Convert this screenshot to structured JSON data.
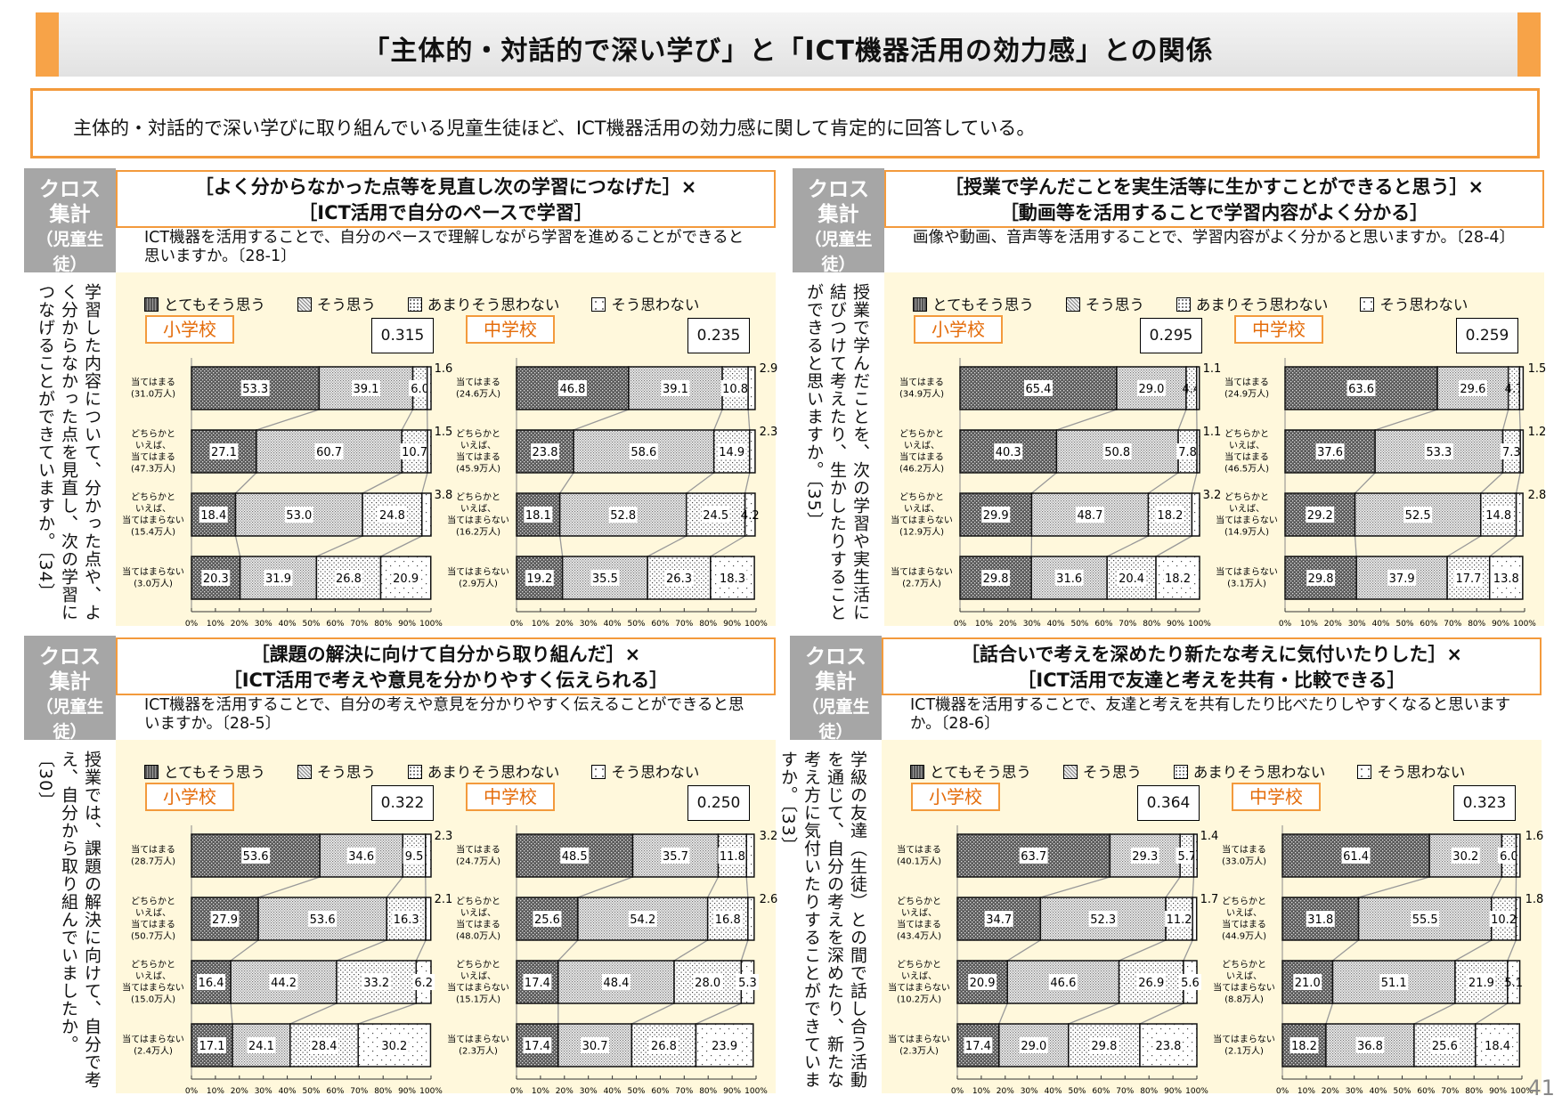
{
  "title": "「主体的・対話的で深い学び」と「ICT機器活用の効力感」との関係",
  "summary": "主体的・対話的で深い学びに取り組んでいる児童生徒ほど、ICT機器活用の効力感に関して肯定的に回答している。",
  "cross_label": [
    "クロス",
    "集計",
    "（児童生徒）"
  ],
  "page_number": "41",
  "legend": [
    "とてもそう思う",
    "そう思う",
    "あまりそう思わない",
    "そう思わない"
  ],
  "colors": {
    "accent": "#f39a3c",
    "school_text": "#e46c0a",
    "chart_bg": "#fff8dc"
  },
  "chart_data": [
    {
      "type": "bar",
      "orientation": "horizontal-stacked-100",
      "title": [
        "［よく分からなかった点等を見直し次の学習につなげた］×",
        "［ICT活用で自分のペースで学習］"
      ],
      "question": "ICT機器を活用することで、自分のペースで理解しながら学習を進めることができると思いますか。〔28-1〕",
      "side_text": "学習した内容について、分かった点や、よく分からなかった点を見直し、次の学習につなげることができていますか。〔34〕",
      "xticks": [
        "0%",
        "10%",
        "20%",
        "30%",
        "40%",
        "50%",
        "60%",
        "70%",
        "80%",
        "90%",
        "100%"
      ],
      "charts": [
        {
          "school": "小学校",
          "coef": "0.315",
          "rows": [
            {
              "label": [
                "当てはまる"
              ],
              "count": "(31.0万人)",
              "values": [
                53.3,
                39.1,
                6.0,
                1.6
              ]
            },
            {
              "label": [
                "どちらかと",
                "いえば、",
                "当てはまる"
              ],
              "count": "(47.3万人)",
              "values": [
                27.1,
                60.7,
                10.7,
                1.5
              ]
            },
            {
              "label": [
                "どちらかと",
                "いえば、",
                "当てはまらない"
              ],
              "count": "(15.4万人)",
              "values": [
                18.4,
                53.0,
                24.8,
                3.8
              ]
            },
            {
              "label": [
                "当てはまらない"
              ],
              "count": "(3.0万人)",
              "values": [
                20.3,
                31.9,
                26.8,
                20.9
              ]
            }
          ]
        },
        {
          "school": "中学校",
          "coef": "0.235",
          "rows": [
            {
              "label": [
                "当てはまる"
              ],
              "count": "(24.6万人)",
              "values": [
                46.8,
                39.1,
                10.8,
                2.9
              ]
            },
            {
              "label": [
                "どちらかと",
                "いえば、",
                "当てはまる"
              ],
              "count": "(45.9万人)",
              "values": [
                23.8,
                58.6,
                14.9,
                2.3
              ]
            },
            {
              "label": [
                "どちらかと",
                "いえば、",
                "当てはまらない"
              ],
              "count": "(16.2万人)",
              "values": [
                18.1,
                52.8,
                24.5,
                4.2
              ]
            },
            {
              "label": [
                "当てはまらない"
              ],
              "count": "(2.9万人)",
              "values": [
                19.2,
                35.5,
                26.3,
                18.3
              ]
            }
          ]
        }
      ]
    },
    {
      "type": "bar",
      "orientation": "horizontal-stacked-100",
      "title": [
        "［授業で学んだことを実生活等に生かすことができると思う］×",
        "［動画等を活用することで学習内容がよく分かる］"
      ],
      "question": "画像や動画、音声等を活用することで、学習内容がよく分かると思いますか。〔28-4〕",
      "side_text": "授業で学んだことを、次の学習や実生活に結びつけて考えたり、生かしたりすることができると思いますか。〔35〕",
      "xticks": [
        "0%",
        "10%",
        "20%",
        "30%",
        "40%",
        "50%",
        "60%",
        "70%",
        "80%",
        "90%",
        "100%"
      ],
      "charts": [
        {
          "school": "小学校",
          "coef": "0.295",
          "rows": [
            {
              "label": [
                "当てはまる"
              ],
              "count": "(34.9万人)",
              "values": [
                65.4,
                29.0,
                4.4,
                1.1
              ]
            },
            {
              "label": [
                "どちらかと",
                "いえば、",
                "当てはまる"
              ],
              "count": "(46.2万人)",
              "values": [
                40.3,
                50.8,
                7.8,
                1.1
              ]
            },
            {
              "label": [
                "どちらかと",
                "いえば、",
                "当てはまらない"
              ],
              "count": "(12.9万人)",
              "values": [
                29.9,
                48.7,
                18.2,
                3.2
              ]
            },
            {
              "label": [
                "当てはまらない"
              ],
              "count": "(2.7万人)",
              "values": [
                29.8,
                31.6,
                20.4,
                18.2
              ]
            }
          ]
        },
        {
          "school": "中学校",
          "coef": "0.259",
          "rows": [
            {
              "label": [
                "当てはまる"
              ],
              "count": "(24.9万人)",
              "values": [
                63.6,
                29.6,
                4.7,
                1.5
              ]
            },
            {
              "label": [
                "どちらかと",
                "いえば、",
                "当てはまる"
              ],
              "count": "(46.5万人)",
              "values": [
                37.6,
                53.3,
                7.3,
                1.2
              ]
            },
            {
              "label": [
                "どちらかと",
                "いえば、",
                "当てはまらない"
              ],
              "count": "(14.9万人)",
              "values": [
                29.2,
                52.5,
                14.8,
                2.8
              ]
            },
            {
              "label": [
                "当てはまらない"
              ],
              "count": "(3.1万人)",
              "values": [
                29.8,
                37.9,
                17.7,
                13.8
              ]
            }
          ]
        }
      ]
    },
    {
      "type": "bar",
      "orientation": "horizontal-stacked-100",
      "title": [
        "［課題の解決に向けて自分から取り組んだ］×",
        "［ICT活用で考えや意見を分かりやすく伝えられる］"
      ],
      "question": "ICT機器を活用することで、自分の考えや意見を分かりやすく伝えることができると思いますか。〔28-5〕",
      "side_text": "授業では、課題の解決に向けて、自分で考え、自分から取り組んでいましたか。〔30〕",
      "xticks": [
        "0%",
        "10%",
        "20%",
        "30%",
        "40%",
        "50%",
        "60%",
        "70%",
        "80%",
        "90%",
        "100%"
      ],
      "charts": [
        {
          "school": "小学校",
          "coef": "0.322",
          "rows": [
            {
              "label": [
                "当てはまる"
              ],
              "count": "(28.7万人)",
              "values": [
                53.6,
                34.6,
                9.5,
                2.3
              ]
            },
            {
              "label": [
                "どちらかと",
                "いえば、",
                "当てはまる"
              ],
              "count": "(50.7万人)",
              "values": [
                27.9,
                53.6,
                16.3,
                2.1
              ]
            },
            {
              "label": [
                "どちらかと",
                "いえば、",
                "当てはまらない"
              ],
              "count": "(15.0万人)",
              "values": [
                16.4,
                44.2,
                33.2,
                6.2
              ]
            },
            {
              "label": [
                "当てはまらない"
              ],
              "count": "(2.4万人)",
              "values": [
                17.1,
                24.1,
                28.4,
                30.2
              ]
            }
          ]
        },
        {
          "school": "中学校",
          "coef": "0.250",
          "rows": [
            {
              "label": [
                "当てはまる"
              ],
              "count": "(24.7万人)",
              "values": [
                48.5,
                35.7,
                11.8,
                3.2
              ]
            },
            {
              "label": [
                "どちらかと",
                "いえば、",
                "当てはまる"
              ],
              "count": "(48.0万人)",
              "values": [
                25.6,
                54.2,
                16.8,
                2.6
              ]
            },
            {
              "label": [
                "どちらかと",
                "いえば、",
                "当てはまらない"
              ],
              "count": "(15.1万人)",
              "values": [
                17.4,
                48.4,
                28.0,
                5.3
              ]
            },
            {
              "label": [
                "当てはまらない"
              ],
              "count": "(2.3万人)",
              "values": [
                17.4,
                30.7,
                26.8,
                23.9
              ]
            }
          ]
        }
      ]
    },
    {
      "type": "bar",
      "orientation": "horizontal-stacked-100",
      "title": [
        "［話合いで考えを深めたり新たな考えに気付いたりした］×",
        "［ICT活用で友達と考えを共有・比較できる］"
      ],
      "question": "ICT機器を活用することで、友達と考えを共有したり比べたりしやすくなると思いますか。〔28-6〕",
      "side_text": "学級の友達（生徒）との間で話し合う活動を通じて、自分の考えを深めたり、新たな考え方に気付いたりすることができていますか。〔33〕",
      "xticks": [
        "0%",
        "10%",
        "20%",
        "30%",
        "40%",
        "50%",
        "60%",
        "70%",
        "80%",
        "90%",
        "100%"
      ],
      "charts": [
        {
          "school": "小学校",
          "coef": "0.364",
          "rows": [
            {
              "label": [
                "当てはまる"
              ],
              "count": "(40.1万人)",
              "values": [
                63.7,
                29.3,
                5.7,
                1.4
              ]
            },
            {
              "label": [
                "どちらかと",
                "いえば、",
                "当てはまる"
              ],
              "count": "(43.4万人)",
              "values": [
                34.7,
                52.3,
                11.2,
                1.7
              ]
            },
            {
              "label": [
                "どちらかと",
                "いえば、",
                "当てはまらない"
              ],
              "count": "(10.2万人)",
              "values": [
                20.9,
                46.6,
                26.9,
                5.6
              ]
            },
            {
              "label": [
                "当てはまらない"
              ],
              "count": "(2.3万人)",
              "values": [
                17.4,
                29.0,
                29.8,
                23.8
              ]
            }
          ]
        },
        {
          "school": "中学校",
          "coef": "0.323",
          "rows": [
            {
              "label": [
                "当てはまる"
              ],
              "count": "(33.0万人)",
              "values": [
                61.4,
                30.2,
                6.0,
                1.6
              ]
            },
            {
              "label": [
                "どちらかと",
                "いえば、",
                "当てはまる"
              ],
              "count": "(44.9万人)",
              "values": [
                31.8,
                55.5,
                10.2,
                1.8
              ]
            },
            {
              "label": [
                "どちらかと",
                "いえば、",
                "当てはまらない"
              ],
              "count": "(8.8万人)",
              "values": [
                21.0,
                51.1,
                21.9,
                5.1
              ]
            },
            {
              "label": [
                "当てはまらない"
              ],
              "count": "(2.1万人)",
              "values": [
                18.2,
                36.8,
                25.6,
                18.4
              ]
            }
          ]
        }
      ]
    }
  ]
}
